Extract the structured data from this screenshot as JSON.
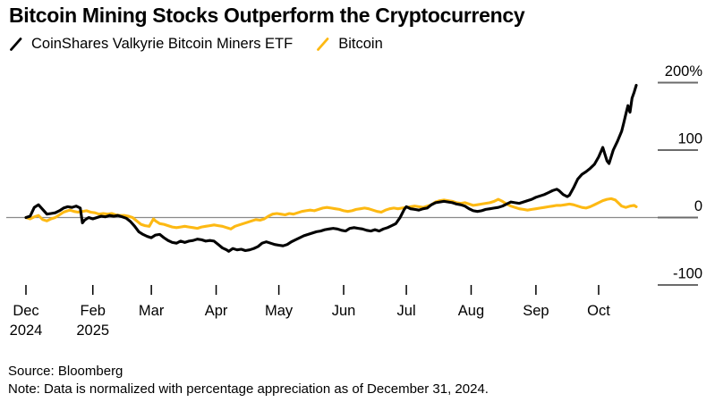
{
  "title": "Bitcoin Mining Stocks Outperform the Cryptocurrency",
  "legend_items": [
    {
      "label": "CoinShares Valkyrie Bitcoin Miners ETF",
      "color": "#000000"
    },
    {
      "label": "Bitcoin",
      "color": "#FDB913"
    }
  ],
  "footer": {
    "source": "Source: Bloomberg",
    "note": "Note: Data is normalized with percentage appreciation as of December 31, 2024."
  },
  "colors": {
    "etf_line": "#000000",
    "bitcoin_line": "#FDB913",
    "zero_line": "#8a8a8a",
    "axis_tick": "#000000",
    "y_tick": "#6b6b6b",
    "text": "#000000"
  },
  "chart_data": {
    "type": "line",
    "title": "Bitcoin Mining Stocks Outperform the Cryptocurrency",
    "x_unit": "days since 2024-12-31",
    "x_domain": [
      0,
      292
    ],
    "ylabel": "percentage appreciation since Dec 31, 2024 (%)",
    "ylim": [
      -130,
      220
    ],
    "grid": "zero-line-only",
    "legend_position": "top-left",
    "y_ticks": [
      {
        "label": "200%",
        "value": 200
      },
      {
        "label": "100",
        "value": 100
      },
      {
        "label": "0",
        "value": 0
      },
      {
        "label": "-100",
        "value": -100
      }
    ],
    "x_ticks": [
      {
        "label": "Dec",
        "sublabel": "2024",
        "day": 0
      },
      {
        "label": "Feb",
        "sublabel": "2025",
        "day": 32
      },
      {
        "label": "Mar",
        "sublabel": "",
        "day": 60
      },
      {
        "label": "Apr",
        "sublabel": "",
        "day": 91
      },
      {
        "label": "May",
        "sublabel": "",
        "day": 121
      },
      {
        "label": "Jun",
        "sublabel": "",
        "day": 152
      },
      {
        "label": "Jul",
        "sublabel": "",
        "day": 182
      },
      {
        "label": "Aug",
        "sublabel": "",
        "day": 213
      },
      {
        "label": "Sep",
        "sublabel": "",
        "day": 244
      },
      {
        "label": "Oct",
        "sublabel": "",
        "day": 274
      }
    ],
    "series": [
      {
        "name": "Bitcoin",
        "color": "#FDB913",
        "points": [
          [
            0,
            0
          ],
          [
            2,
            -2
          ],
          [
            4,
            1
          ],
          [
            6,
            3
          ],
          [
            8,
            -3
          ],
          [
            10,
            -5
          ],
          [
            12,
            -2
          ],
          [
            14,
            0
          ],
          [
            16,
            4
          ],
          [
            18,
            8
          ],
          [
            20,
            10
          ],
          [
            21,
            11
          ],
          [
            23,
            9
          ],
          [
            25,
            8
          ],
          [
            27,
            9
          ],
          [
            29,
            10
          ],
          [
            31,
            8
          ],
          [
            33,
            7
          ],
          [
            35,
            5
          ],
          [
            37,
            6
          ],
          [
            39,
            5
          ],
          [
            41,
            6
          ],
          [
            43,
            4
          ],
          [
            45,
            3
          ],
          [
            47,
            3
          ],
          [
            49,
            2
          ],
          [
            51,
            0
          ],
          [
            53,
            -5
          ],
          [
            55,
            -10
          ],
          [
            57,
            -12
          ],
          [
            59,
            -13
          ],
          [
            61,
            -2
          ],
          [
            62,
            -5
          ],
          [
            64,
            -9
          ],
          [
            66,
            -10
          ],
          [
            68,
            -12
          ],
          [
            70,
            -14
          ],
          [
            72,
            -15
          ],
          [
            74,
            -14
          ],
          [
            76,
            -13
          ],
          [
            78,
            -14
          ],
          [
            80,
            -15
          ],
          [
            82,
            -16
          ],
          [
            84,
            -14
          ],
          [
            86,
            -13
          ],
          [
            88,
            -12
          ],
          [
            90,
            -11
          ],
          [
            92,
            -12
          ],
          [
            94,
            -13
          ],
          [
            96,
            -15
          ],
          [
            98,
            -17
          ],
          [
            100,
            -13
          ],
          [
            102,
            -11
          ],
          [
            104,
            -9
          ],
          [
            106,
            -7
          ],
          [
            108,
            -5
          ],
          [
            110,
            -3
          ],
          [
            112,
            -4
          ],
          [
            114,
            -2
          ],
          [
            116,
            2
          ],
          [
            118,
            5
          ],
          [
            120,
            6
          ],
          [
            122,
            5
          ],
          [
            124,
            4
          ],
          [
            126,
            6
          ],
          [
            128,
            5
          ],
          [
            130,
            7
          ],
          [
            132,
            9
          ],
          [
            134,
            10
          ],
          [
            136,
            11
          ],
          [
            138,
            10
          ],
          [
            140,
            12
          ],
          [
            142,
            14
          ],
          [
            144,
            15
          ],
          [
            146,
            14
          ],
          [
            148,
            13
          ],
          [
            150,
            12
          ],
          [
            152,
            10
          ],
          [
            154,
            9
          ],
          [
            156,
            10
          ],
          [
            158,
            12
          ],
          [
            160,
            13
          ],
          [
            162,
            14
          ],
          [
            164,
            13
          ],
          [
            166,
            11
          ],
          [
            168,
            9
          ],
          [
            170,
            8
          ],
          [
            172,
            11
          ],
          [
            174,
            13
          ],
          [
            176,
            14
          ],
          [
            178,
            13
          ],
          [
            180,
            14
          ],
          [
            182,
            15
          ],
          [
            184,
            16
          ],
          [
            186,
            17
          ],
          [
            188,
            16
          ],
          [
            190,
            15
          ],
          [
            192,
            17
          ],
          [
            194,
            19
          ],
          [
            196,
            23
          ],
          [
            198,
            25
          ],
          [
            200,
            26
          ],
          [
            202,
            25
          ],
          [
            204,
            24
          ],
          [
            206,
            22
          ],
          [
            208,
            21
          ],
          [
            210,
            22
          ],
          [
            212,
            20
          ],
          [
            214,
            18
          ],
          [
            216,
            19
          ],
          [
            218,
            20
          ],
          [
            220,
            21
          ],
          [
            222,
            22
          ],
          [
            224,
            24
          ],
          [
            226,
            27
          ],
          [
            228,
            24
          ],
          [
            230,
            20
          ],
          [
            232,
            17
          ],
          [
            234,
            15
          ],
          [
            236,
            13
          ],
          [
            238,
            12
          ],
          [
            240,
            11
          ],
          [
            242,
            12
          ],
          [
            244,
            13
          ],
          [
            246,
            14
          ],
          [
            248,
            15
          ],
          [
            250,
            16
          ],
          [
            252,
            17
          ],
          [
            254,
            18
          ],
          [
            256,
            18
          ],
          [
            258,
            19
          ],
          [
            260,
            20
          ],
          [
            262,
            19
          ],
          [
            264,
            17
          ],
          [
            266,
            15
          ],
          [
            268,
            14
          ],
          [
            270,
            16
          ],
          [
            272,
            19
          ],
          [
            274,
            22
          ],
          [
            276,
            25
          ],
          [
            278,
            27
          ],
          [
            280,
            28
          ],
          [
            282,
            26
          ],
          [
            284,
            20
          ],
          [
            285,
            17
          ],
          [
            287,
            15
          ],
          [
            289,
            17
          ],
          [
            291,
            18
          ],
          [
            292,
            16
          ]
        ]
      },
      {
        "name": "CoinShares Valkyrie Bitcoin Miners ETF",
        "color": "#000000",
        "points": [
          [
            0,
            0
          ],
          [
            2,
            2
          ],
          [
            4,
            15
          ],
          [
            6,
            19
          ],
          [
            8,
            12
          ],
          [
            10,
            5
          ],
          [
            12,
            6
          ],
          [
            14,
            7
          ],
          [
            16,
            10
          ],
          [
            18,
            14
          ],
          [
            20,
            16
          ],
          [
            22,
            15
          ],
          [
            24,
            17
          ],
          [
            26,
            14
          ],
          [
            27,
            -8
          ],
          [
            28,
            -4
          ],
          [
            30,
            0
          ],
          [
            32,
            -2
          ],
          [
            34,
            0
          ],
          [
            36,
            2
          ],
          [
            38,
            1
          ],
          [
            40,
            3
          ],
          [
            42,
            2
          ],
          [
            44,
            3
          ],
          [
            46,
            1
          ],
          [
            48,
            -1
          ],
          [
            50,
            -6
          ],
          [
            52,
            -13
          ],
          [
            54,
            -21
          ],
          [
            56,
            -25
          ],
          [
            58,
            -28
          ],
          [
            60,
            -30
          ],
          [
            62,
            -26
          ],
          [
            64,
            -25
          ],
          [
            66,
            -30
          ],
          [
            68,
            -34
          ],
          [
            70,
            -37
          ],
          [
            72,
            -38
          ],
          [
            74,
            -35
          ],
          [
            76,
            -37
          ],
          [
            78,
            -35
          ],
          [
            80,
            -34
          ],
          [
            82,
            -32
          ],
          [
            84,
            -33
          ],
          [
            86,
            -35
          ],
          [
            88,
            -34
          ],
          [
            90,
            -35
          ],
          [
            92,
            -40
          ],
          [
            94,
            -45
          ],
          [
            96,
            -48
          ],
          [
            97,
            -50
          ],
          [
            99,
            -46
          ],
          [
            101,
            -48
          ],
          [
            103,
            -47
          ],
          [
            105,
            -49
          ],
          [
            107,
            -48
          ],
          [
            109,
            -46
          ],
          [
            111,
            -43
          ],
          [
            113,
            -38
          ],
          [
            115,
            -36
          ],
          [
            117,
            -38
          ],
          [
            119,
            -40
          ],
          [
            121,
            -41
          ],
          [
            123,
            -42
          ],
          [
            125,
            -40
          ],
          [
            127,
            -36
          ],
          [
            129,
            -33
          ],
          [
            131,
            -30
          ],
          [
            133,
            -27
          ],
          [
            135,
            -25
          ],
          [
            137,
            -23
          ],
          [
            139,
            -21
          ],
          [
            141,
            -20
          ],
          [
            143,
            -18
          ],
          [
            145,
            -17
          ],
          [
            147,
            -16
          ],
          [
            149,
            -17
          ],
          [
            151,
            -19
          ],
          [
            153,
            -20
          ],
          [
            155,
            -16
          ],
          [
            157,
            -15
          ],
          [
            159,
            -16
          ],
          [
            161,
            -17
          ],
          [
            163,
            -19
          ],
          [
            165,
            -20
          ],
          [
            167,
            -18
          ],
          [
            169,
            -20
          ],
          [
            171,
            -17
          ],
          [
            173,
            -15
          ],
          [
            175,
            -12
          ],
          [
            177,
            -9
          ],
          [
            179,
            0
          ],
          [
            181,
            12
          ],
          [
            182,
            16
          ],
          [
            184,
            13
          ],
          [
            186,
            12
          ],
          [
            188,
            11
          ],
          [
            190,
            13
          ],
          [
            192,
            14
          ],
          [
            194,
            19
          ],
          [
            196,
            22
          ],
          [
            198,
            23
          ],
          [
            200,
            24
          ],
          [
            202,
            23
          ],
          [
            204,
            22
          ],
          [
            206,
            20
          ],
          [
            208,
            19
          ],
          [
            210,
            17
          ],
          [
            212,
            13
          ],
          [
            214,
            10
          ],
          [
            216,
            9
          ],
          [
            218,
            10
          ],
          [
            220,
            12
          ],
          [
            222,
            13
          ],
          [
            224,
            14
          ],
          [
            226,
            15
          ],
          [
            228,
            17
          ],
          [
            230,
            20
          ],
          [
            232,
            23
          ],
          [
            234,
            22
          ],
          [
            236,
            21
          ],
          [
            238,
            23
          ],
          [
            240,
            25
          ],
          [
            242,
            27
          ],
          [
            244,
            30
          ],
          [
            246,
            32
          ],
          [
            248,
            34
          ],
          [
            250,
            37
          ],
          [
            252,
            40
          ],
          [
            254,
            42
          ],
          [
            255,
            40
          ],
          [
            257,
            34
          ],
          [
            259,
            31
          ],
          [
            260,
            33
          ],
          [
            262,
            44
          ],
          [
            264,
            57
          ],
          [
            266,
            64
          ],
          [
            268,
            68
          ],
          [
            270,
            73
          ],
          [
            272,
            79
          ],
          [
            274,
            90
          ],
          [
            276,
            104
          ],
          [
            278,
            84
          ],
          [
            279,
            80
          ],
          [
            281,
            100
          ],
          [
            283,
            113
          ],
          [
            285,
            128
          ],
          [
            286,
            140
          ],
          [
            287,
            153
          ],
          [
            288,
            166
          ],
          [
            289,
            156
          ],
          [
            290,
            177
          ],
          [
            291,
            186
          ],
          [
            292,
            196
          ]
        ]
      }
    ]
  }
}
